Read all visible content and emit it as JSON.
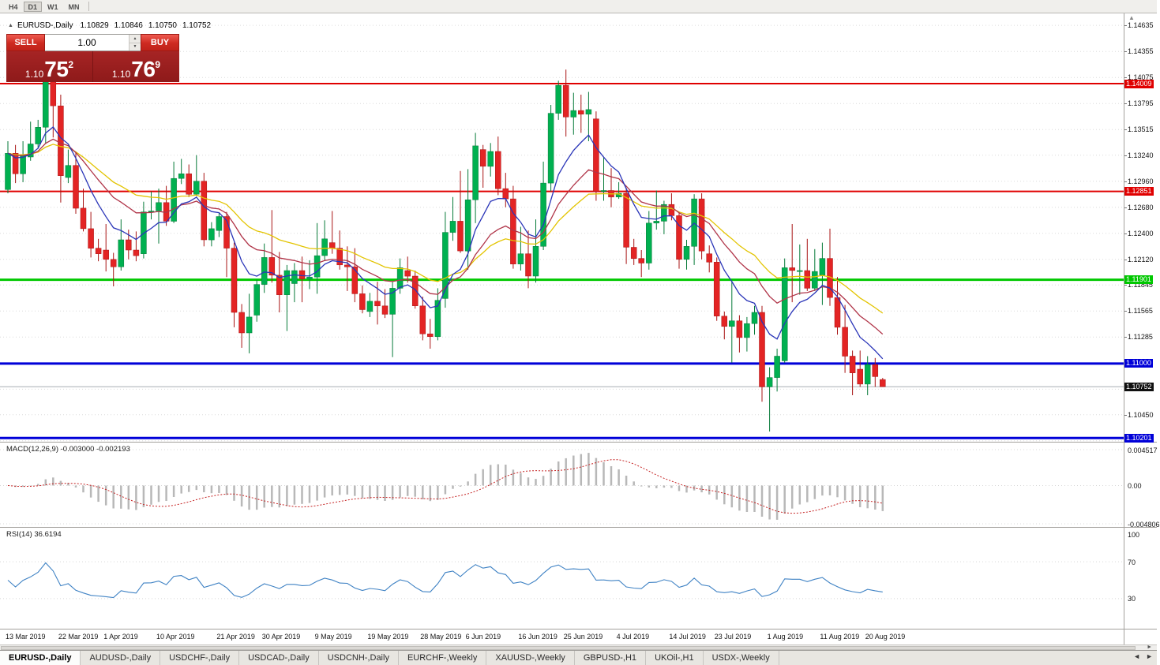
{
  "icons": {
    "panel_collapse": "▲",
    "spin_up": "▲",
    "spin_down": "▼",
    "scroll_up": "▲",
    "scroll_right": "►",
    "tabs_left": "◄",
    "tabs_right": "►"
  },
  "toolbar": {
    "timeframes": [
      "H4",
      "D1",
      "W1",
      "MN"
    ],
    "active": "D1"
  },
  "chart_header": {
    "symbol": "EURUSD-,Daily",
    "open": "1.10829",
    "high": "1.10846",
    "low": "1.10750",
    "close": "1.10752"
  },
  "trade_panel": {
    "sell_label": "SELL",
    "buy_label": "BUY",
    "volume": "1.00",
    "sell_price": {
      "base": "1.10",
      "big": "75",
      "sup": "2"
    },
    "buy_price": {
      "base": "1.10",
      "big": "76",
      "sup": "9"
    }
  },
  "price_axis": {
    "ticks": [
      {
        "label": "1.14635",
        "price": 1.14635
      },
      {
        "label": "1.14355",
        "price": 1.14355
      },
      {
        "label": "1.14075",
        "price": 1.14075
      },
      {
        "label": "1.13795",
        "price": 1.13795
      },
      {
        "label": "1.13515",
        "price": 1.13515
      },
      {
        "label": "1.13240",
        "price": 1.1324
      },
      {
        "label": "1.12960",
        "price": 1.1296
      },
      {
        "label": "1.12680",
        "price": 1.1268
      },
      {
        "label": "1.12400",
        "price": 1.124
      },
      {
        "label": "1.12120",
        "price": 1.1212
      },
      {
        "label": "1.11845",
        "price": 1.11845
      },
      {
        "label": "1.11565",
        "price": 1.11565
      },
      {
        "label": "1.11285",
        "price": 1.11285
      },
      {
        "label": "1.10450",
        "price": 1.1045
      }
    ],
    "hidden_gridlines": [
      1.11005,
      1.10725,
      1.1017
    ]
  },
  "levels": [
    {
      "label": "1.14009",
      "price": 1.14009,
      "color": "#e00000",
      "width": 2,
      "type": "resistance"
    },
    {
      "label": "1.12851",
      "price": 1.12851,
      "color": "#e00000",
      "width": 2,
      "type": "resistance"
    },
    {
      "label": "1.11901",
      "price": 1.11901,
      "color": "#00c800",
      "width": 3,
      "type": "support"
    },
    {
      "label": "1.11000",
      "price": 1.11,
      "color": "#0000d8",
      "width": 3,
      "type": "support"
    },
    {
      "label": "1.10201",
      "price": 1.10201,
      "color": "#0000d8",
      "width": 3,
      "type": "support"
    }
  ],
  "current_price": {
    "label": "1.10752",
    "value": 1.10752,
    "color": "#101010"
  },
  "chart_data": {
    "type": "candlestick",
    "symbol": "EURUSD-",
    "period": "Daily",
    "price_max": 1.1467,
    "price_min": 1.1016,
    "up_color": "#00b050",
    "down_color": "#e32424",
    "dates": [
      "2019.03.13",
      "2019.03.14",
      "2019.03.15",
      "2019.03.18",
      "2019.03.19",
      "2019.03.20",
      "2019.03.21",
      "2019.03.22",
      "2019.03.25",
      "2019.03.26",
      "2019.03.27",
      "2019.03.28",
      "2019.03.29",
      "2019.04.01",
      "2019.04.02",
      "2019.04.03",
      "2019.04.04",
      "2019.04.05",
      "2019.04.08",
      "2019.04.09",
      "2019.04.10",
      "2019.04.11",
      "2019.04.12",
      "2019.04.15",
      "2019.04.16",
      "2019.04.17",
      "2019.04.18",
      "2019.04.19",
      "2019.04.22",
      "2019.04.23",
      "2019.04.24",
      "2019.04.25",
      "2019.04.26",
      "2019.04.29",
      "2019.04.30",
      "2019.05.01",
      "2019.05.02",
      "2019.05.03",
      "2019.05.06",
      "2019.05.07",
      "2019.05.08",
      "2019.05.09",
      "2019.05.10",
      "2019.05.13",
      "2019.05.14",
      "2019.05.15",
      "2019.05.16",
      "2019.05.17",
      "2019.05.20",
      "2019.05.21",
      "2019.05.22",
      "2019.05.23",
      "2019.05.24",
      "2019.05.27",
      "2019.05.28",
      "2019.05.29",
      "2019.05.30",
      "2019.05.31",
      "2019.06.03",
      "2019.06.04",
      "2019.06.05",
      "2019.06.06",
      "2019.06.07",
      "2019.06.10",
      "2019.06.11",
      "2019.06.12",
      "2019.06.13",
      "2019.06.14",
      "2019.06.17",
      "2019.06.18",
      "2019.06.19",
      "2019.06.20",
      "2019.06.21",
      "2019.06.24",
      "2019.06.25",
      "2019.06.26",
      "2019.06.27",
      "2019.06.28",
      "2019.07.01",
      "2019.07.02",
      "2019.07.03",
      "2019.07.04",
      "2019.07.05",
      "2019.07.08",
      "2019.07.09",
      "2019.07.10",
      "2019.07.11",
      "2019.07.12",
      "2019.07.15",
      "2019.07.16",
      "2019.07.17",
      "2019.07.18",
      "2019.07.19",
      "2019.07.22",
      "2019.07.23",
      "2019.07.24",
      "2019.07.25",
      "2019.07.26",
      "2019.07.29",
      "2019.07.30",
      "2019.07.31",
      "2019.08.01",
      "2019.08.02",
      "2019.08.05",
      "2019.08.06",
      "2019.08.07",
      "2019.08.08",
      "2019.08.09",
      "2019.08.12",
      "2019.08.13",
      "2019.08.14",
      "2019.08.15",
      "2019.08.16",
      "2019.08.19",
      "2019.08.20",
      "2019.08.21",
      "2019.08.22"
    ],
    "open": [
      1.1287,
      1.1326,
      1.1304,
      1.1322,
      1.1336,
      1.1354,
      1.1405,
      1.1377,
      1.13,
      1.1313,
      1.1267,
      1.1245,
      1.1224,
      1.1222,
      1.1212,
      1.1204,
      1.1233,
      1.1222,
      1.1218,
      1.1263,
      1.1264,
      1.1273,
      1.1253,
      1.1299,
      1.1304,
      1.1282,
      1.1296,
      1.1233,
      1.1243,
      1.1258,
      1.1224,
      1.1155,
      1.1133,
      1.1152,
      1.1185,
      1.1214,
      1.1195,
      1.1174,
      1.1186,
      1.12,
      1.1191,
      1.1193,
      1.1216,
      1.123,
      1.1224,
      1.1206,
      1.1204,
      1.1175,
      1.1156,
      1.1167,
      1.1162,
      1.1153,
      1.1181,
      1.12,
      1.1194,
      1.1162,
      1.1132,
      1.1129,
      1.117,
      1.1241,
      1.1253,
      1.1221,
      1.1276,
      1.133,
      1.1312,
      1.1328,
      1.1288,
      1.1277,
      1.1207,
      1.1218,
      1.1194,
      1.1226,
      1.1294,
      1.1369,
      1.1399,
      1.1365,
      1.1372,
      1.1368,
      1.1363,
      1.1285,
      1.1286,
      1.1279,
      1.1283,
      1.1225,
      1.1213,
      1.1208,
      1.1251,
      1.1253,
      1.1271,
      1.1259,
      1.1212,
      1.1226,
      1.1277,
      1.1218,
      1.1209,
      1.1151,
      1.114,
      1.1146,
      1.1128,
      1.1143,
      1.1155,
      1.1075,
      1.1085,
      1.1103,
      1.1203,
      1.12,
      1.12,
      1.1181,
      1.1195,
      1.1213,
      1.1171,
      1.1139,
      1.1108,
      1.1094,
      1.1078,
      1.1099,
      1.10829
    ],
    "high": [
      1.1339,
      1.1335,
      1.1339,
      1.136,
      1.1362,
      1.1412,
      1.141,
      1.1389,
      1.133,
      1.1327,
      1.1288,
      1.1263,
      1.1234,
      1.125,
      1.1219,
      1.1255,
      1.1244,
      1.1242,
      1.1274,
      1.1285,
      1.1288,
      1.1291,
      1.1317,
      1.132,
      1.1314,
      1.1324,
      1.1305,
      1.1252,
      1.1262,
      1.1263,
      1.123,
      1.1164,
      1.1175,
      1.119,
      1.1229,
      1.1265,
      1.122,
      1.1206,
      1.1208,
      1.1215,
      1.1211,
      1.1251,
      1.1254,
      1.1264,
      1.1243,
      1.1226,
      1.1224,
      1.1184,
      1.1176,
      1.1188,
      1.118,
      1.1188,
      1.1213,
      1.1215,
      1.12,
      1.1172,
      1.1148,
      1.1181,
      1.1263,
      1.1279,
      1.1307,
      1.1309,
      1.1348,
      1.1335,
      1.1337,
      1.1344,
      1.1305,
      1.1291,
      1.1247,
      1.1243,
      1.1255,
      1.1317,
      1.1378,
      1.1404,
      1.1416,
      1.1391,
      1.1389,
      1.1392,
      1.1371,
      1.1322,
      1.131,
      1.1295,
      1.1289,
      1.1234,
      1.1222,
      1.1264,
      1.1286,
      1.1275,
      1.1283,
      1.1263,
      1.1233,
      1.1282,
      1.1283,
      1.1227,
      1.1214,
      1.1156,
      1.1188,
      1.1152,
      1.115,
      1.1162,
      1.1162,
      1.1096,
      1.1116,
      1.1213,
      1.125,
      1.1228,
      1.1234,
      1.1223,
      1.123,
      1.1245,
      1.1193,
      1.1163,
      1.1114,
      1.1114,
      1.1108,
      1.1106,
      1.10846
    ],
    "low": [
      1.1283,
      1.1294,
      1.1295,
      1.1318,
      1.1331,
      1.1336,
      1.1343,
      1.1273,
      1.1294,
      1.1261,
      1.1242,
      1.1214,
      1.121,
      1.1199,
      1.1183,
      1.12,
      1.1212,
      1.121,
      1.1213,
      1.1255,
      1.1229,
      1.1248,
      1.1251,
      1.1293,
      1.1279,
      1.128,
      1.1226,
      1.1226,
      1.1236,
      1.1193,
      1.1139,
      1.1117,
      1.1111,
      1.1145,
      1.1176,
      1.1187,
      1.1155,
      1.1135,
      1.1166,
      1.1166,
      1.118,
      1.1175,
      1.1211,
      1.1218,
      1.1201,
      1.1178,
      1.1166,
      1.1154,
      1.115,
      1.1142,
      1.1149,
      1.1107,
      1.1175,
      1.1187,
      1.1159,
      1.1125,
      1.1116,
      1.1125,
      1.116,
      1.1232,
      1.1219,
      1.1201,
      1.1251,
      1.1289,
      1.1301,
      1.1281,
      1.1268,
      1.1202,
      1.12,
      1.1181,
      1.1187,
      1.1222,
      1.1285,
      1.1362,
      1.1344,
      1.1346,
      1.1348,
      1.1339,
      1.1275,
      1.1275,
      1.1268,
      1.1277,
      1.1207,
      1.1206,
      1.1193,
      1.1201,
      1.1244,
      1.1239,
      1.1254,
      1.1202,
      1.1201,
      1.1206,
      1.1212,
      1.1198,
      1.1146,
      1.1126,
      1.1101,
      1.1112,
      1.1113,
      1.1131,
      1.1059,
      1.1027,
      1.107,
      1.1101,
      1.1166,
      1.1174,
      1.1178,
      1.1178,
      1.1163,
      1.1162,
      1.1131,
      1.109,
      1.1066,
      1.1075,
      1.1066,
      1.1075,
      1.1075
    ],
    "close": [
      1.1326,
      1.1304,
      1.1324,
      1.1336,
      1.1354,
      1.1405,
      1.1377,
      1.1302,
      1.1313,
      1.1267,
      1.1245,
      1.1224,
      1.1218,
      1.1212,
      1.1204,
      1.1233,
      1.1222,
      1.1216,
      1.1263,
      1.1264,
      1.1273,
      1.1253,
      1.1299,
      1.1304,
      1.1282,
      1.1296,
      1.1233,
      1.1245,
      1.1258,
      1.1224,
      1.1155,
      1.1133,
      1.115,
      1.1185,
      1.1214,
      1.1195,
      1.1174,
      1.12,
      1.12,
      1.1191,
      1.1193,
      1.1216,
      1.1234,
      1.1224,
      1.1206,
      1.1204,
      1.1175,
      1.1158,
      1.1167,
      1.1162,
      1.1153,
      1.1181,
      1.1203,
      1.1194,
      1.1162,
      1.1132,
      1.1129,
      1.1168,
      1.1241,
      1.1253,
      1.1221,
      1.1276,
      1.1334,
      1.1312,
      1.1328,
      1.1288,
      1.1277,
      1.1207,
      1.1218,
      1.1194,
      1.1226,
      1.1294,
      1.1369,
      1.1399,
      1.1365,
      1.1372,
      1.1368,
      1.1373,
      1.1285,
      1.1286,
      1.1279,
      1.1283,
      1.1225,
      1.1213,
      1.1208,
      1.1251,
      1.1253,
      1.1271,
      1.1259,
      1.1212,
      1.1226,
      1.1277,
      1.1221,
      1.1209,
      1.1151,
      1.114,
      1.1146,
      1.1128,
      1.1143,
      1.1155,
      1.1075,
      1.1085,
      1.1108,
      1.1203,
      1.12,
      1.12,
      1.1181,
      1.1199,
      1.1213,
      1.1171,
      1.1139,
      1.1108,
      1.109,
      1.1078,
      1.1099,
      1.1086,
      1.10752
    ],
    "overlays": [
      {
        "name": "ma-slow-line",
        "kind": "ema",
        "period": 28,
        "color": "#e3c400"
      },
      {
        "name": "ma-mid-line",
        "kind": "ema",
        "period": 17,
        "color": "#b03448"
      },
      {
        "name": "ma-fast-line",
        "kind": "ema",
        "period": 8,
        "color": "#2a35b8"
      }
    ],
    "date_labels": [
      {
        "text": "13 Mar 2019",
        "index": 0
      },
      {
        "text": "22 Mar 2019",
        "index": 7
      },
      {
        "text": "1 Apr 2019",
        "index": 13
      },
      {
        "text": "10 Apr 2019",
        "index": 20
      },
      {
        "text": "21 Apr 2019",
        "index": 28
      },
      {
        "text": "30 Apr 2019",
        "index": 34
      },
      {
        "text": "9 May 2019",
        "index": 41
      },
      {
        "text": "19 May 2019",
        "index": 48
      },
      {
        "text": "28 May 2019",
        "index": 55
      },
      {
        "text": "6 Jun 2019",
        "index": 61
      },
      {
        "text": "16 Jun 2019",
        "index": 68
      },
      {
        "text": "25 Jun 2019",
        "index": 74
      },
      {
        "text": "4 Jul 2019",
        "index": 81
      },
      {
        "text": "14 Jul 2019",
        "index": 88
      },
      {
        "text": "23 Jul 2019",
        "index": 94
      },
      {
        "text": "1 Aug 2019",
        "index": 101
      },
      {
        "text": "11 Aug 2019",
        "index": 108
      },
      {
        "text": "20 Aug 2019",
        "index": 114
      }
    ]
  },
  "macd_panel": {
    "title": "MACD(12,26,9) -0.003000 -0.002193",
    "fast": 12,
    "slow": 26,
    "signal": 9,
    "main_value": -0.003,
    "signal_value": -0.002193,
    "y_max": 0.004517,
    "y_min": -0.004806,
    "histogram_color": "#b8b8b8",
    "signal_color": "#c52222",
    "axis": [
      {
        "label": "0.004517",
        "value": 0.004517
      },
      {
        "label": "0.00",
        "value": 0
      },
      {
        "label": "-0.004806",
        "value": -0.004806
      }
    ]
  },
  "rsi_panel": {
    "title": "RSI(14) 36.6194",
    "period": 14,
    "value": 36.6194,
    "line_color": "#3f82c4",
    "guide_levels": [
      70,
      30
    ],
    "axis": [
      {
        "label": "100",
        "value": 100
      },
      {
        "label": "70",
        "value": 70
      },
      {
        "label": "30",
        "value": 30
      }
    ]
  },
  "tabs": {
    "items": [
      "EURUSD-,Daily",
      "AUDUSD-,Daily",
      "USDCHF-,Daily",
      "USDCAD-,Daily",
      "USDCNH-,Daily",
      "EURCHF-,Weekly",
      "XAUUSD-,Weekly",
      "GBPUSD-,H1",
      "UKOil-,H1",
      "USDX-,Weekly"
    ],
    "active_index": 0
  }
}
